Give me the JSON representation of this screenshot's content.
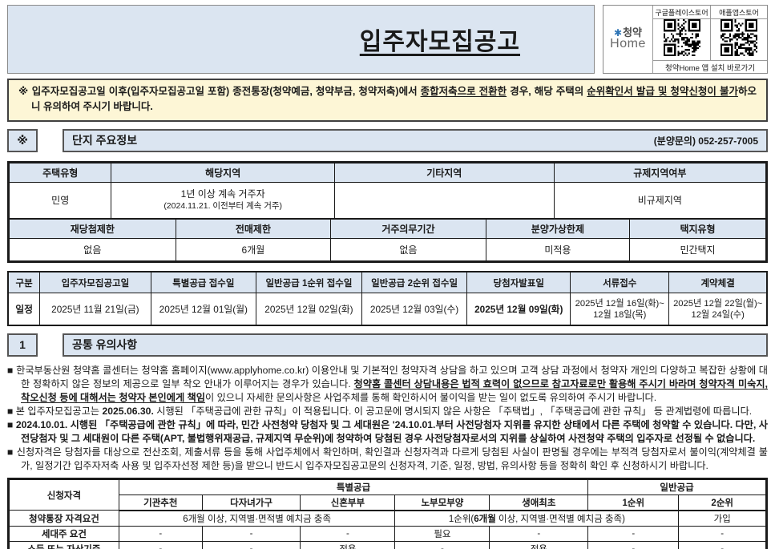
{
  "colors": {
    "light_blue": "#dbe5f1",
    "notice_yellow": "#fdf6d6",
    "border_dark": "#1a1a1a",
    "logo_star_blue": "#2e75b6"
  },
  "header": {
    "title": "입주자모집공고",
    "logo": {
      "star": "✱",
      "top": "청약",
      "bottom": "Home"
    },
    "qr": {
      "store1": "구글플레이스토어",
      "store2": "애플앱스토어",
      "caption": "청약Home 앱 설치 바로가기"
    }
  },
  "notice": {
    "seg1": "※ 입주자모집공고일 이후(입주자모집공고일 포함) 종전통장(청약예금, 청약부금, 청약저축)에서 ",
    "seg2": "종합저축으로 전환한",
    "seg3": " 경우, 해당 주택의 ",
    "seg4": "순위확인서 발급 및 청약신청이 불가",
    "seg5": "하오니 유의하여 주시기 바랍니다."
  },
  "section_info": {
    "marker": "※",
    "title": "단지 주요정보",
    "contact": "(분양문의) 052-257-7005"
  },
  "info_table": {
    "headers1": [
      "주택유형",
      "해당지역",
      "기타지역",
      "규제지역여부"
    ],
    "values1": {
      "type": "민영",
      "region_line1": "1년 이상 계속 거주자",
      "region_line2": "(2024.11.21. 이전부터 계속 거주)",
      "other": "",
      "regulated": "비규제지역"
    },
    "headers2": [
      "재당첨제한",
      "전매제한",
      "거주의무기간",
      "분양가상한제",
      "택지유형"
    ],
    "values2": [
      "없음",
      "6개월",
      "없음",
      "미적용",
      "민간택지"
    ]
  },
  "schedule": {
    "headers": [
      "구분",
      "입주자모집공고일",
      "특별공급 접수일",
      "일반공급 1순위 접수일",
      "일반공급 2순위 접수일",
      "당첨자발표일",
      "서류접수",
      "계약체결"
    ],
    "label": "일정",
    "values": [
      "2025년 11월 21일(금)",
      "2025년 12월 01일(월)",
      "2025년 12월 02일(화)",
      "2025년 12월 03일(수)",
      "2025년 12월 09일(화)",
      "2025년 12월 16일(화)~\n12월 18일(목)",
      "2025년 12월 22일(월)~\n12월 24일(수)"
    ]
  },
  "section_notes": {
    "marker": "1",
    "title": "공통 유의사항"
  },
  "bullet_char": "■",
  "bullets": {
    "b1": {
      "seg1": " 한국부동산원 청약홈 콜센터는 청약홈 홈페이지(www.applyhome.co.kr) 이용안내 및 기본적인 청약자격 상담을 하고 있으며 고객 상담 과정에서 청약자 개인의 다양하고 복잡한 상황에 대한 정확하지 않은 정보의 제공으로 일부 착오 안내가 이루어지는 경우가 있습니다. ",
      "seg2": "청약홈 콜센터 상담내용은 법적 효력이 없으므로 참고자료로만 활용해 주시기 바라며 청약자격 미숙지, 착오신청 등에 대해서는 청약자 본인에게 책임",
      "seg3": "이 있으니 자세한 문의사항은 사업주체를 통해 확인하시어 불이익을 받는 일이 없도록 유의하여 주시기 바랍니다."
    },
    "b2": {
      "seg1": " 본 입주자모집공고는 ",
      "seg2": "2025.06.30.",
      "seg3": " 시행된 「주택공급에 관한 규칙」이 적용됩니다. 이 공고문에 명시되지 않은 사항은 「주택법」, 「주택공급에 관한 규칙」 등 관계법령에 따릅니다."
    },
    "b3": {
      "seg1": " 2024.10.01. 시행된 「주택공급에 관한 규칙」에 따라, 민간 사전청약 당첨자 및 그 세대원은 '24.10.01.부터 사전당첨자 지위를 유지한 상태에서 다른 주택에 청약할 수 있습니다. 다만, 사전당첨자 및 그 세대원이 다른 주택(APT, 불법행위재공급, 규제지역 무순위)에 청약하여 당첨된 경우 사전당첨자로서의 지위를 상실하여 사전청약 주택의 입주자로 선정될 수 없습니다."
    },
    "b4": {
      "seg1": " 신청자격은 당첨자를 대상으로 전산조회, 제출서류 등을 통해 사업주체에서 확인하며, 확인결과 신청자격과 다르게 당첨된 사실이 판명될 경우에는 부적격 당첨자로서 불이익(계약체결 불가, 일정기간 입주자저축 사용 및 입주자선정 제한 등)을 받으니 반드시 입주자모집공고문의 신청자격, 기준, 일정, 방법, 유의사항 등을 정확히 확인 후 신청하시기 바랍니다."
    }
  },
  "qual_table": {
    "corner": "신청자격",
    "group_special": "특별공급",
    "group_general": "일반공급",
    "cols": [
      "기관추천",
      "다자녀가구",
      "신혼부부",
      "노부모부양",
      "생애최초",
      "1순위",
      "2순위"
    ],
    "row1": {
      "label": "청약통장 자격요건",
      "cell1": "6개월 이상, 지역별·면적별 예치금 충족",
      "cell2_pre": "1순위(",
      "cell2_bold": "6개월",
      "cell2_post": " 이상, 지역별·면적별 예치금 충족)",
      "cell3": "가입"
    },
    "row2": {
      "label": "세대주 요건",
      "cells": [
        "-",
        "-",
        "-",
        "필요",
        "-",
        "-",
        "-"
      ]
    },
    "row3": {
      "label": "소득 또는 자산기준",
      "cells": [
        "-",
        "-",
        "적용",
        "-",
        "적용",
        "-",
        "-"
      ]
    }
  }
}
